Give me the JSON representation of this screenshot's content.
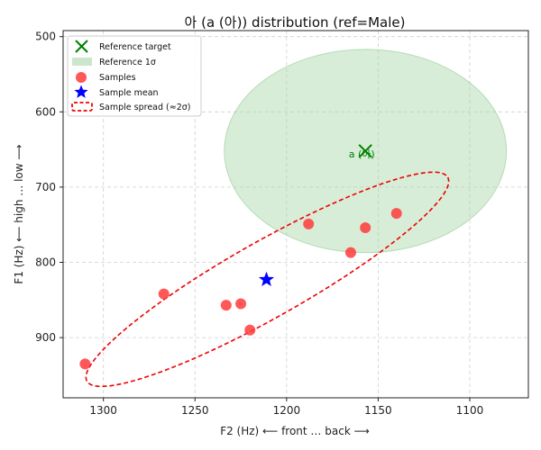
{
  "chart_data": {
    "type": "scatter",
    "title": "아 (a (아)) distribution (ref=Male)",
    "xlabel": "F2 (Hz) ⟵ front … back ⟶",
    "ylabel": "F1 (Hz) ⟵ high … low ⟶",
    "xlim": [
      1322,
      1068
    ],
    "ylim": [
      980,
      492
    ],
    "x_inverted": true,
    "y_inverted": true,
    "grid": true,
    "xticks": [
      1300,
      1250,
      1200,
      1150,
      1100
    ],
    "yticks": [
      500,
      600,
      700,
      800,
      900
    ],
    "legend_position": "top-left",
    "legend": [
      {
        "label": "Reference target",
        "marker": "x",
        "color": "#008000"
      },
      {
        "label": "Reference 1σ",
        "marker": "patch",
        "color": "#a9d6a9"
      },
      {
        "label": "Samples",
        "marker": "circle",
        "color": "#ff3b3b"
      },
      {
        "label": "Sample mean",
        "marker": "star",
        "color": "#0000ff"
      },
      {
        "label": "Sample spread (≈2σ)",
        "marker": "dashed-ellipse",
        "color": "#ee0000"
      }
    ],
    "reference": {
      "label": "a (아)",
      "f2": 1157,
      "f1": 652,
      "sd_f2": 77,
      "sd_f1": 135,
      "color": "#008000",
      "fill": "#a9d6a9"
    },
    "samples": [
      {
        "f2": 1310,
        "f1": 935
      },
      {
        "f2": 1267,
        "f1": 842
      },
      {
        "f2": 1233,
        "f1": 857
      },
      {
        "f2": 1225,
        "f1": 855
      },
      {
        "f2": 1220,
        "f1": 890
      },
      {
        "f2": 1188,
        "f1": 749
      },
      {
        "f2": 1165,
        "f1": 787
      },
      {
        "f2": 1157,
        "f1": 754
      },
      {
        "f2": 1140,
        "f1": 735
      }
    ],
    "sample_mean": {
      "f2": 1211,
      "f1": 823
    },
    "sample_spread": {
      "center_f2": 1211,
      "center_f1": 823,
      "axis_points": [
        {
          "f2": 1112,
          "f1": 687
        },
        {
          "f2": 1309,
          "f1": 958
        }
      ],
      "minor_half_width_f2": 9
    }
  }
}
